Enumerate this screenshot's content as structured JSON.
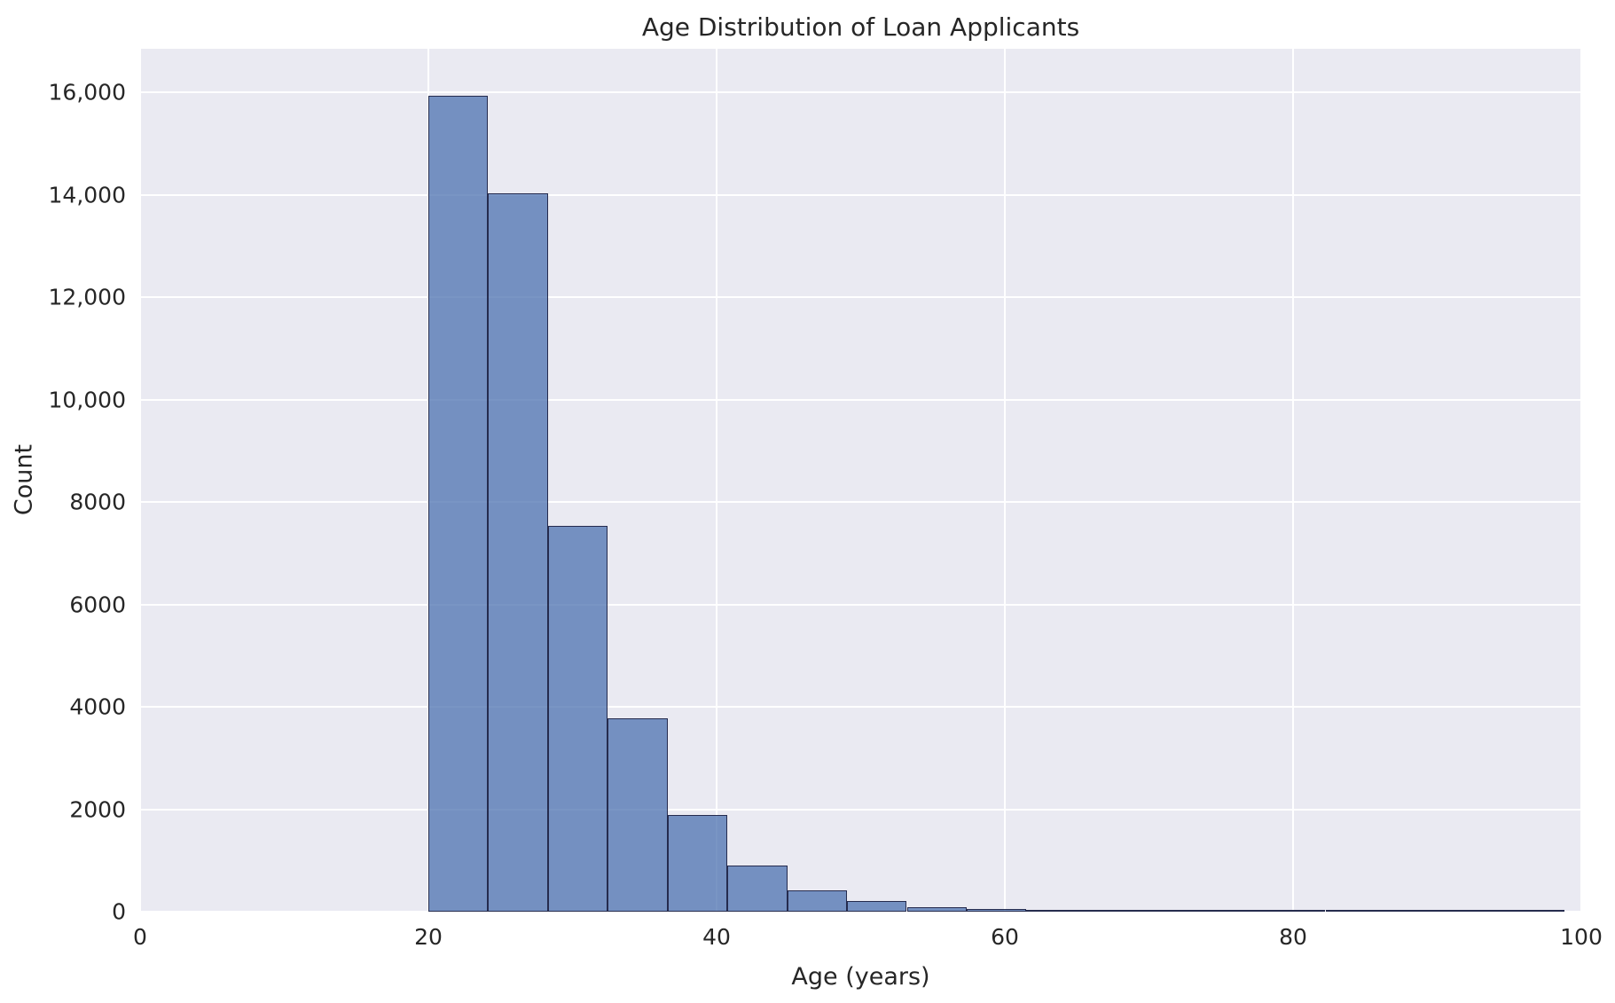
{
  "chart_data": {
    "type": "bar",
    "subtype": "histogram",
    "title": "Age Distribution of Loan Applicants",
    "xlabel": "Age (years)",
    "ylabel": "Count",
    "xlim": [
      0,
      100
    ],
    "ylim": [
      0,
      16850
    ],
    "grid": true,
    "legend": null,
    "x_ticks": [
      {
        "value": 0,
        "label": "0"
      },
      {
        "value": 20,
        "label": "20"
      },
      {
        "value": 40,
        "label": "40"
      },
      {
        "value": 60,
        "label": "60"
      },
      {
        "value": 80,
        "label": "80"
      },
      {
        "value": 100,
        "label": "100"
      }
    ],
    "y_ticks": [
      {
        "value": 0,
        "label": "0"
      },
      {
        "value": 2000,
        "label": "2000"
      },
      {
        "value": 4000,
        "label": "4000"
      },
      {
        "value": 6000,
        "label": "6000"
      },
      {
        "value": 8000,
        "label": "8000"
      },
      {
        "value": 10000,
        "label": "10,000"
      },
      {
        "value": 12000,
        "label": "12,000"
      },
      {
        "value": 14000,
        "label": "14,000"
      },
      {
        "value": 16000,
        "label": "16,000"
      }
    ],
    "bin_edges": [
      20.0,
      24.15,
      28.3,
      32.45,
      36.6,
      40.75,
      44.9,
      49.05,
      53.2,
      57.35,
      61.5,
      65.65,
      69.8,
      73.95,
      78.1,
      82.25,
      86.4,
      90.55,
      94.7,
      98.85
    ],
    "counts": [
      15940,
      14020,
      7540,
      3780,
      1880,
      900,
      420,
      215,
      80,
      55,
      25,
      12,
      6,
      3,
      2,
      1,
      1,
      1,
      1
    ],
    "colors": {
      "axes_background": "#eaeaf2",
      "figure_background": "#ffffff",
      "gridline": "#ffffff",
      "bar_fill": "#4c72b0",
      "bar_fill_alpha": 0.75,
      "bar_edge": "#171a3a",
      "text": "#262626"
    }
  }
}
